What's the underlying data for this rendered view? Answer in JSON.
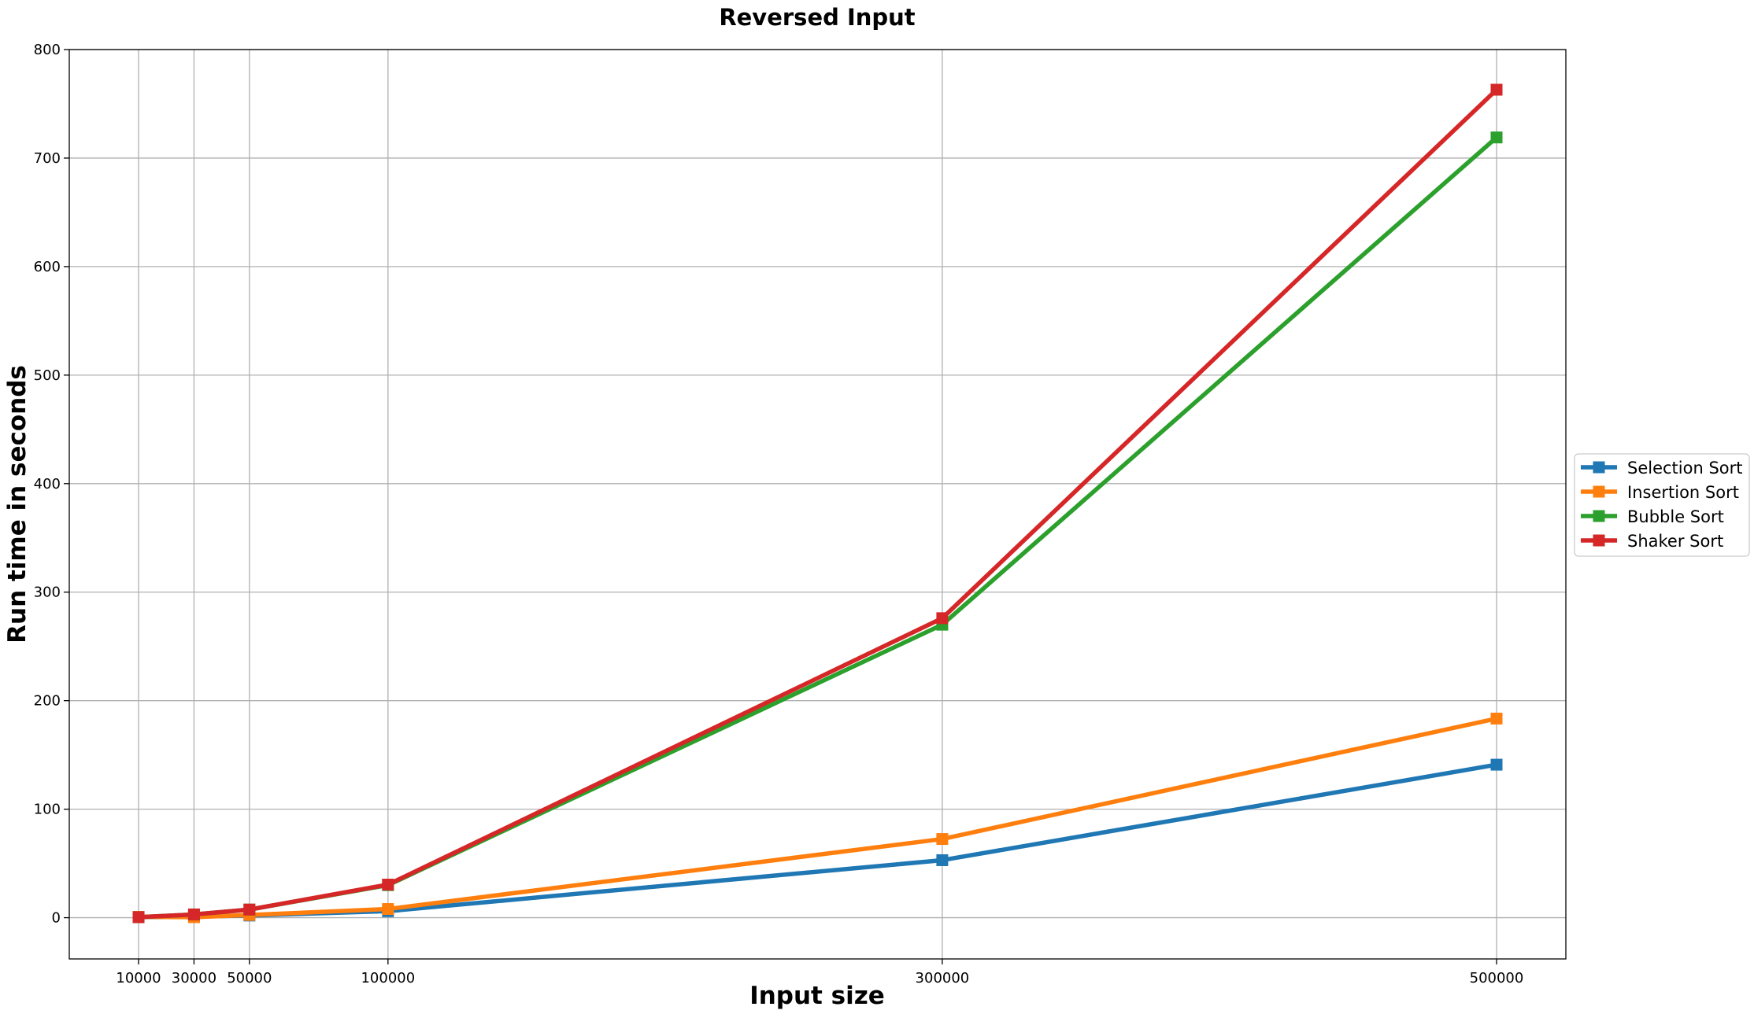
{
  "chart_data": {
    "type": "line",
    "title": "Reversed Input",
    "xlabel": "Input size",
    "ylabel": "Run time in seconds",
    "x": [
      10000,
      30000,
      50000,
      100000,
      300000,
      500000
    ],
    "x_tick_labels": [
      "10000",
      "30000",
      "50000",
      "100000",
      "300000",
      "500000"
    ],
    "xlim": [
      -15000,
      525000
    ],
    "ylim": [
      -38,
      800
    ],
    "y_ticks": [
      0,
      100,
      200,
      300,
      400,
      500,
      600,
      700,
      800
    ],
    "y_tick_labels": [
      "0",
      "100",
      "200",
      "300",
      "400",
      "500",
      "600",
      "700",
      "800"
    ],
    "grid": true,
    "legend_position": "outside-right",
    "marker": "square",
    "series": [
      {
        "name": "Selection Sort",
        "color": "#1f77b4",
        "values": [
          0.5,
          1.0,
          2.0,
          6.0,
          53.0,
          141.0
        ]
      },
      {
        "name": "Insertion Sort",
        "color": "#ff7f0e",
        "values": [
          0.8,
          0.5,
          2.5,
          8.0,
          72.5,
          183.5
        ]
      },
      {
        "name": "Bubble Sort",
        "color": "#2ca02c",
        "values": [
          0.5,
          3.0,
          7.5,
          30.0,
          270.0,
          719.0
        ]
      },
      {
        "name": "Shaker Sort",
        "color": "#d62728",
        "values": [
          0.5,
          3.0,
          7.5,
          30.5,
          276.0,
          763.0
        ]
      }
    ]
  }
}
